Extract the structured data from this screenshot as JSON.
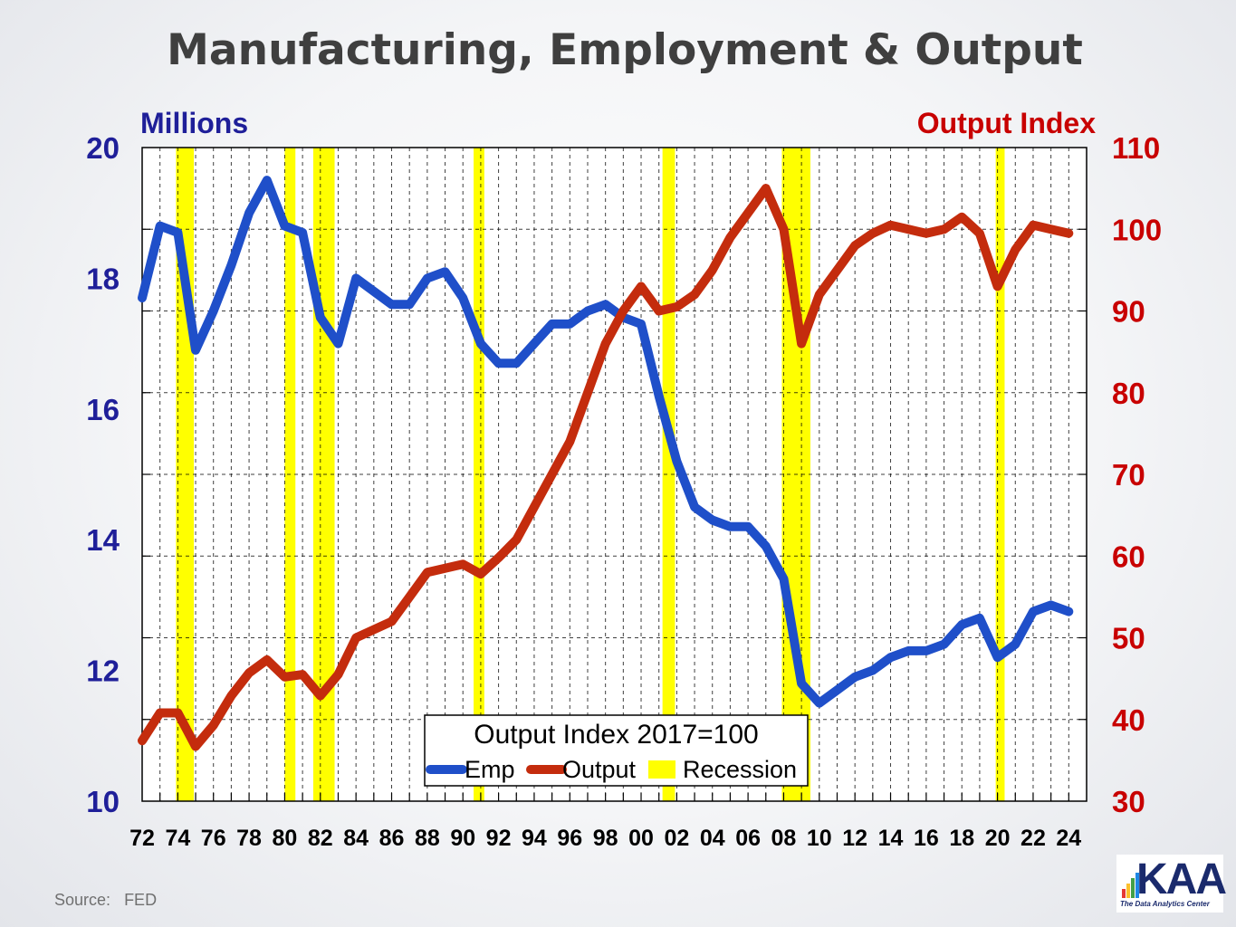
{
  "title": "Manufacturing, Employment & Output",
  "source": {
    "label": "Source:",
    "value": "FED"
  },
  "logo": {
    "text": "KAA",
    "tagline": "The Data Analytics Center"
  },
  "colors": {
    "emp": "#1f4fc9",
    "output": "#c42c0d",
    "recession": "#ffff00",
    "left_axis": "#1f1f99",
    "right_axis": "#c80000"
  },
  "chart_data": {
    "type": "line",
    "title": "Manufacturing, Employment & Output",
    "left_axis": {
      "label": "Millions",
      "range": [
        10,
        20
      ],
      "ticks": [
        "10",
        "12",
        "14",
        "16",
        "18",
        "20"
      ]
    },
    "right_axis": {
      "label": "Output Index",
      "range": [
        30,
        110
      ],
      "ticks": [
        "30",
        "40",
        "50",
        "60",
        "70",
        "80",
        "90",
        "100",
        "110"
      ]
    },
    "x_axis": {
      "range": [
        1972,
        2025
      ],
      "ticks": [
        "72",
        "74",
        "76",
        "78",
        "80",
        "82",
        "84",
        "86",
        "88",
        "90",
        "92",
        "94",
        "96",
        "98",
        "00",
        "02",
        "04",
        "06",
        "08",
        "10",
        "12",
        "14",
        "16",
        "18",
        "20",
        "22",
        "24"
      ]
    },
    "grid": true,
    "legend": {
      "title": "Output Index 2017=100",
      "placement": "bottom-center",
      "entries": [
        "Emp",
        "Output",
        "Recession"
      ]
    },
    "recessions": [
      [
        1973.9,
        1974.9
      ],
      [
        1980.0,
        1980.6
      ],
      [
        1981.6,
        1982.8
      ],
      [
        1990.6,
        1991.2
      ],
      [
        2001.2,
        2001.9
      ],
      [
        2007.9,
        2009.5
      ],
      [
        2019.9,
        2020.4
      ]
    ],
    "x": [
      1972,
      1973,
      1974,
      1975,
      1976,
      1977,
      1978,
      1979,
      1980,
      1981,
      1982,
      1983,
      1984,
      1985,
      1986,
      1987,
      1988,
      1989,
      1990,
      1991,
      1992,
      1993,
      1994,
      1995,
      1996,
      1997,
      1998,
      1999,
      2000,
      2001,
      2002,
      2003,
      2004,
      2005,
      2006,
      2007,
      2008,
      2009,
      2010,
      2011,
      2012,
      2013,
      2014,
      2015,
      2016,
      2017,
      2018,
      2019,
      2020,
      2021,
      2022,
      2023,
      2024
    ],
    "series": [
      {
        "name": "Emp",
        "axis": "left",
        "values": [
          17.7,
          18.8,
          18.7,
          16.9,
          17.5,
          18.2,
          19.0,
          19.5,
          18.8,
          18.7,
          17.4,
          17.0,
          18.0,
          17.8,
          17.6,
          17.6,
          18.0,
          18.1,
          17.7,
          17.0,
          16.7,
          16.7,
          17.0,
          17.3,
          17.3,
          17.5,
          17.6,
          17.4,
          17.3,
          16.2,
          15.2,
          14.5,
          14.3,
          14.2,
          14.2,
          13.9,
          13.4,
          11.8,
          11.5,
          11.7,
          11.9,
          12.0,
          12.2,
          12.3,
          12.3,
          12.4,
          12.7,
          12.8,
          12.2,
          12.4,
          12.9,
          13.0,
          12.9
        ]
      },
      {
        "name": "Output",
        "axis": "right",
        "values": [
          37.4,
          40.8,
          40.8,
          36.7,
          39.3,
          42.9,
          45.7,
          47.3,
          45.2,
          45.5,
          42.9,
          45.5,
          50.0,
          51.0,
          52.0,
          55.0,
          58.0,
          58.5,
          59.0,
          57.8,
          59.8,
          62.0,
          66.0,
          70.0,
          74.0,
          80.0,
          86.0,
          90.0,
          93.0,
          90.0,
          90.5,
          92.0,
          95.0,
          99.0,
          102.0,
          105.0,
          100.0,
          86.0,
          92.0,
          95.0,
          98.0,
          99.5,
          100.5,
          100.0,
          99.5,
          100.0,
          101.5,
          99.5,
          93.0,
          97.5,
          100.5,
          100.0,
          99.5
        ]
      }
    ]
  }
}
